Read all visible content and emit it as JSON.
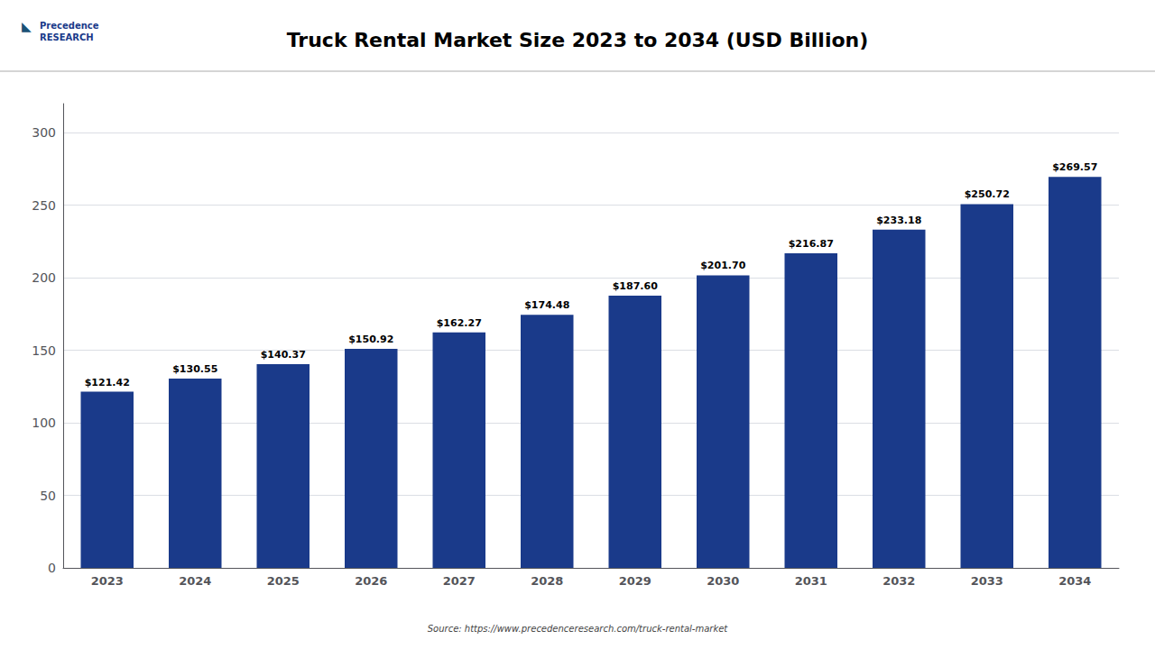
{
  "chart_data": {
    "type": "bar",
    "title": "Truck Rental Market Size 2023 to 2034 (USD Billion)",
    "categories": [
      "2023",
      "2024",
      "2025",
      "2026",
      "2027",
      "2028",
      "2029",
      "2030",
      "2031",
      "2032",
      "2033",
      "2034"
    ],
    "values": [
      121.42,
      130.55,
      140.37,
      150.92,
      162.27,
      174.48,
      187.6,
      201.7,
      216.87,
      233.18,
      250.72,
      269.57
    ],
    "value_labels": [
      "$121.42",
      "$130.55",
      "$140.37",
      "$150.92",
      "$162.27",
      "$174.48",
      "$187.60",
      "$201.70",
      "$216.87",
      "$233.18",
      "$250.72",
      "$269.57"
    ],
    "data_labels": true,
    "color": "#1a3a8a",
    "ylim": [
      0,
      320
    ],
    "yticks": [
      0,
      50,
      100,
      150,
      200,
      250,
      300
    ],
    "grid": true,
    "annotations": [
      "Source: https://www.precedenceresearch.com/truck-rental-market",
      "Precedence\nRESEARCH",
      "◣"
    ]
  }
}
